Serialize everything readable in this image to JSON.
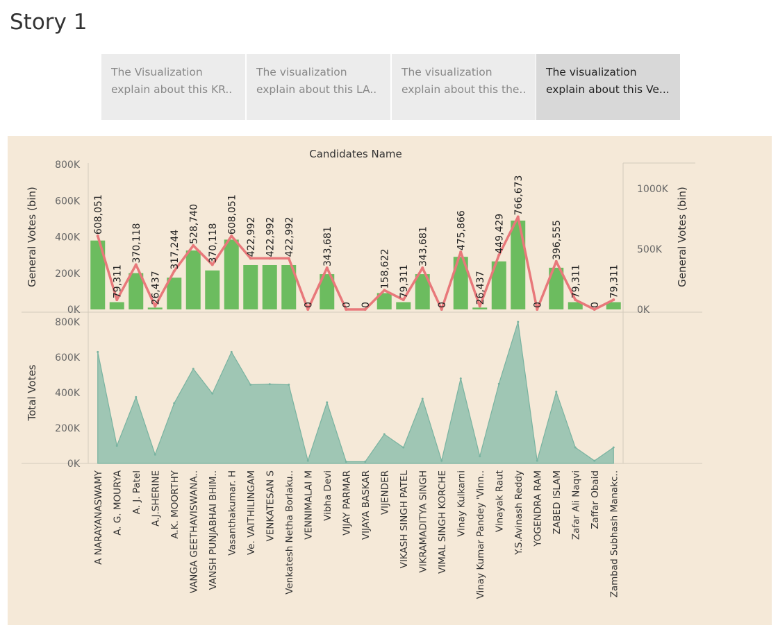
{
  "story": {
    "title": "Story 1",
    "points": [
      {
        "line1": "The Visualization",
        "line2": "explain about this  KR..",
        "active": false
      },
      {
        "line1": "The visualization",
        "line2": "explain about this LA..",
        "active": false
      },
      {
        "line1": "The visualization",
        "line2": "explain about this the..",
        "active": false
      },
      {
        "line1": "The visualization",
        "line2": "explain about this Ve...",
        "active": true
      }
    ]
  },
  "colors": {
    "background": "#f5e9d8",
    "bar": "#6cbc5f",
    "line": "#e8787a",
    "area": "#8fbfae",
    "area_stroke": "#79b3a0"
  },
  "chart_data": [
    {
      "type": "bar",
      "title": "Candidates Name",
      "ylabel": "General Votes (bin)",
      "y2label": "General Votes (bin)",
      "ylim": [
        0,
        800000
      ],
      "yticks": [
        "800K",
        "600K",
        "400K",
        "200K",
        "0K"
      ],
      "y2lim": [
        0,
        1200000
      ],
      "y2ticks": [
        "1000K",
        "500K",
        "0K"
      ],
      "categories": [
        "A NARAYANASWAMY",
        "A. G. MOURYA",
        "A. J. Patel",
        "A.J.SHERINE",
        "A.K. MOORTHY",
        "VANGA GEETHAVISWANA..",
        "VANSH PUNJABHAI BHIM..",
        "Vasanthakumar. H",
        "Ve. VAITHILINGAM",
        "VENKATESAN S",
        "Venkatesh Netha Borlaku..",
        "VENNIMALAI M",
        "Vibha Devi",
        "VIJAY PARMAR",
        "VIJAYA BASKAR",
        "VIJENDER",
        "VIKASH SINGH PATEL",
        "VIKRAMADITYA SINGH",
        "VIMAL SINGH KORCHE",
        "Vinay Kulkarni",
        "Vinay Kumar Pandey 'Vinn..",
        "Vinayak Raut",
        "Y.S.Avinash Reddy",
        "YOGENDRA RAM",
        "ZABED ISLAM",
        "Zafar Ali Naqvi",
        "Zaffar Obaid",
        "Zambad Subhash Manakc.."
      ],
      "series": [
        {
          "values": [
            380000,
            40000,
            200000,
            10000,
            175000,
            325000,
            215000,
            385000,
            245000,
            245000,
            245000,
            0,
            195000,
            0,
            0,
            90000,
            40000,
            195000,
            0,
            290000,
            10000,
            265000,
            490000,
            0,
            230000,
            40000,
            0,
            40000
          ]
        },
        {
          "values": [
            608051,
            79311,
            370118,
            26437,
            317244,
            528740,
            370118,
            608051,
            422992,
            422992,
            422992,
            0,
            343681,
            0,
            0,
            158622,
            79311,
            343681,
            0,
            475866,
            26437,
            449429,
            766673,
            0,
            396555,
            79311,
            0,
            79311
          ]
        }
      ],
      "data_labels": [
        "608,051",
        "79,311",
        "370,118",
        "26,437",
        "317,244",
        "528,740",
        "370,118",
        "608,051",
        "422,992",
        "422,992",
        "422,992",
        "0",
        "343,681",
        "0",
        "0",
        "158,622",
        "79,311",
        "343,681",
        "0",
        "475,866",
        "26,437",
        "449,429",
        "766,673",
        "0",
        "396,555",
        "79,311",
        "0",
        "79,311"
      ]
    },
    {
      "type": "area",
      "ylabel": "Total Votes",
      "ylim": [
        0,
        800000
      ],
      "yticks": [
        "800K",
        "600K",
        "400K",
        "200K",
        "0K"
      ],
      "values": [
        630000,
        100000,
        375000,
        50000,
        340000,
        535000,
        395000,
        630000,
        445000,
        448000,
        445000,
        15000,
        345000,
        10000,
        10000,
        165000,
        90000,
        365000,
        15000,
        480000,
        40000,
        450000,
        800000,
        15000,
        405000,
        90000,
        15000,
        90000
      ]
    }
  ]
}
